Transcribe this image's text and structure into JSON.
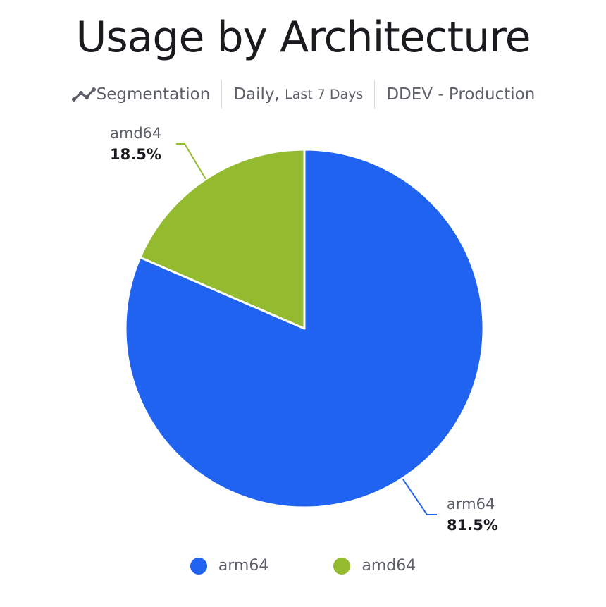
{
  "header": {
    "title": "Usage by Architecture",
    "segmentation_icon": "line-chart-icon",
    "segmentation_label": "Segmentation",
    "period_main": "Daily,",
    "period_detail": "Last 7 Days",
    "environment": "DDEV - Production"
  },
  "chart_data": {
    "type": "pie",
    "title": "Usage by Architecture",
    "slices": [
      {
        "label": "arm64",
        "value": 81.5,
        "display": "81.5%",
        "color": "#1f63f0"
      },
      {
        "label": "amd64",
        "value": 18.5,
        "display": "18.5%",
        "color": "#94bb2f"
      }
    ],
    "legend_position": "bottom"
  }
}
